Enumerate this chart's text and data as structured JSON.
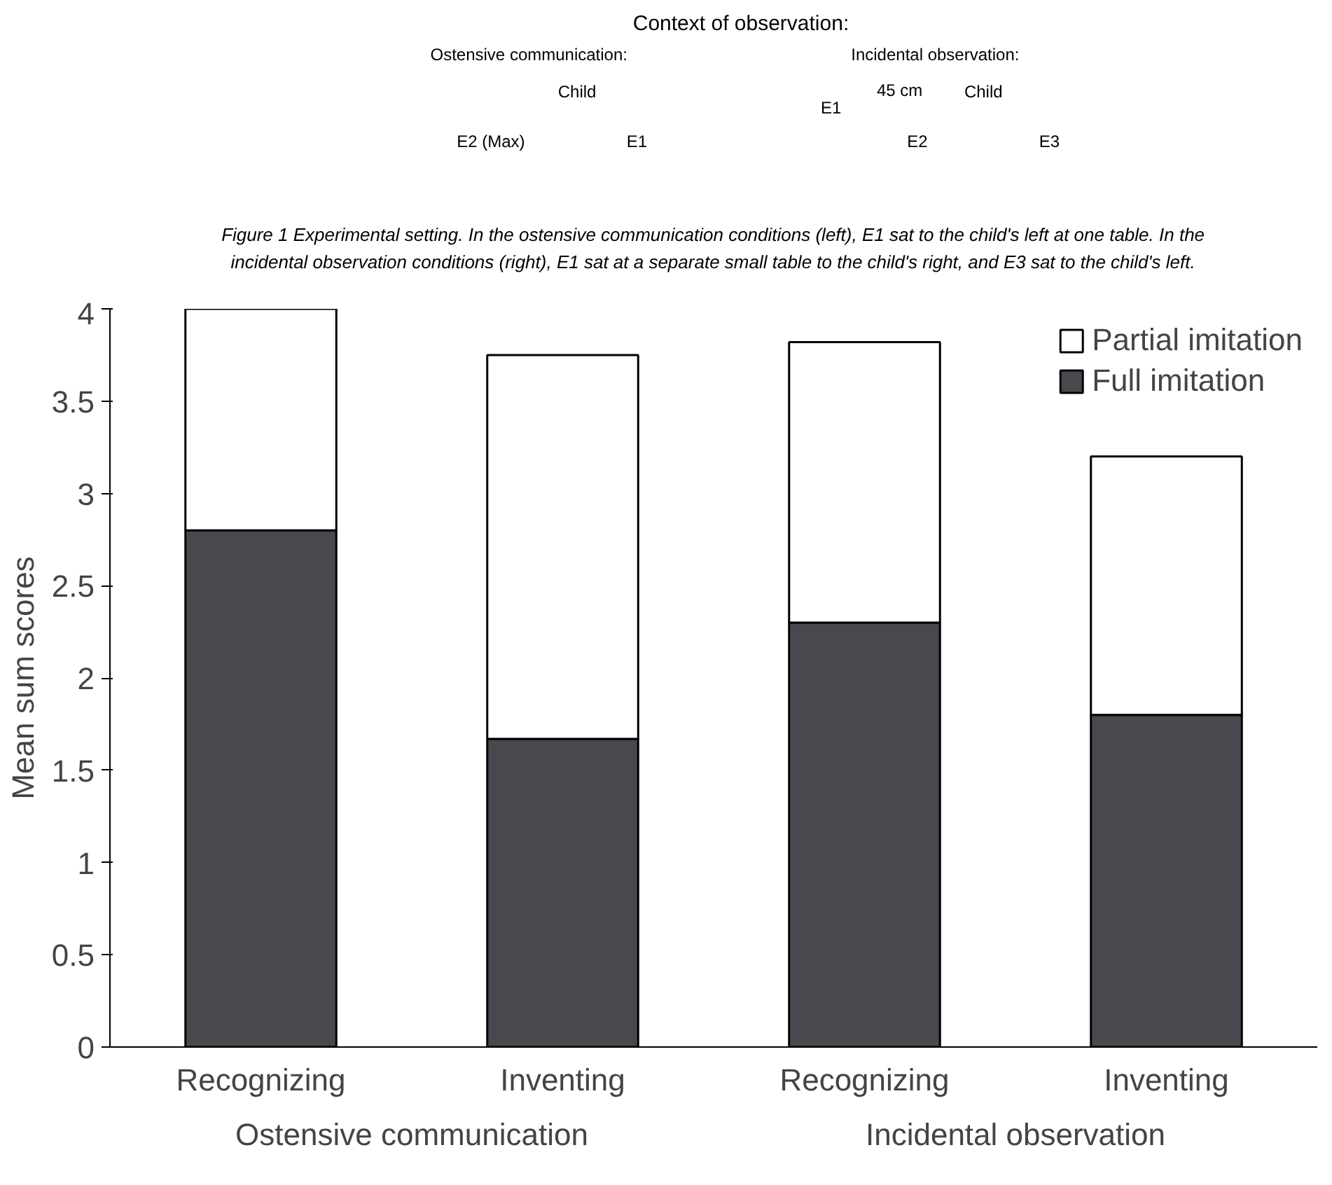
{
  "chart_data": [
    {
      "type": "other",
      "annotations": [
        "Context of observation:",
        "Ostensive communication:",
        "Incidental observation:",
        "Child",
        "E2 (Max)",
        "E1",
        "E1",
        "45 cm",
        "Child",
        "E2",
        "E3",
        "Figure 1 Experimental setting. In the ostensive communication conditions (left), E1 sat to the child's left at one table. In the incidental observation conditions (right), E1 sat at a separate small table to the child's right, and E3 sat to the child's left."
      ]
    },
    {
      "type": "bar",
      "stacked": true,
      "ylabel": "Mean sum scores",
      "categories": [
        "Recognizing",
        "Inventing",
        "Recognizing",
        "Inventing"
      ],
      "series": [
        {
          "name": "Full imitation",
          "color": "#48484e",
          "values": [
            2.8,
            1.67,
            2.3,
            1.8
          ]
        },
        {
          "name": "Partial imitation",
          "color": "#ffffff",
          "values": [
            1.2,
            2.08,
            1.52,
            1.4
          ]
        }
      ],
      "ylim": [
        0,
        4
      ],
      "yticks": [
        0,
        0.5,
        1,
        1.5,
        2,
        2.5,
        3,
        3.5,
        4
      ],
      "legend": "top right",
      "grid": false,
      "annotations": [
        "Ostensive communication",
        "Incidental observation"
      ]
    }
  ]
}
